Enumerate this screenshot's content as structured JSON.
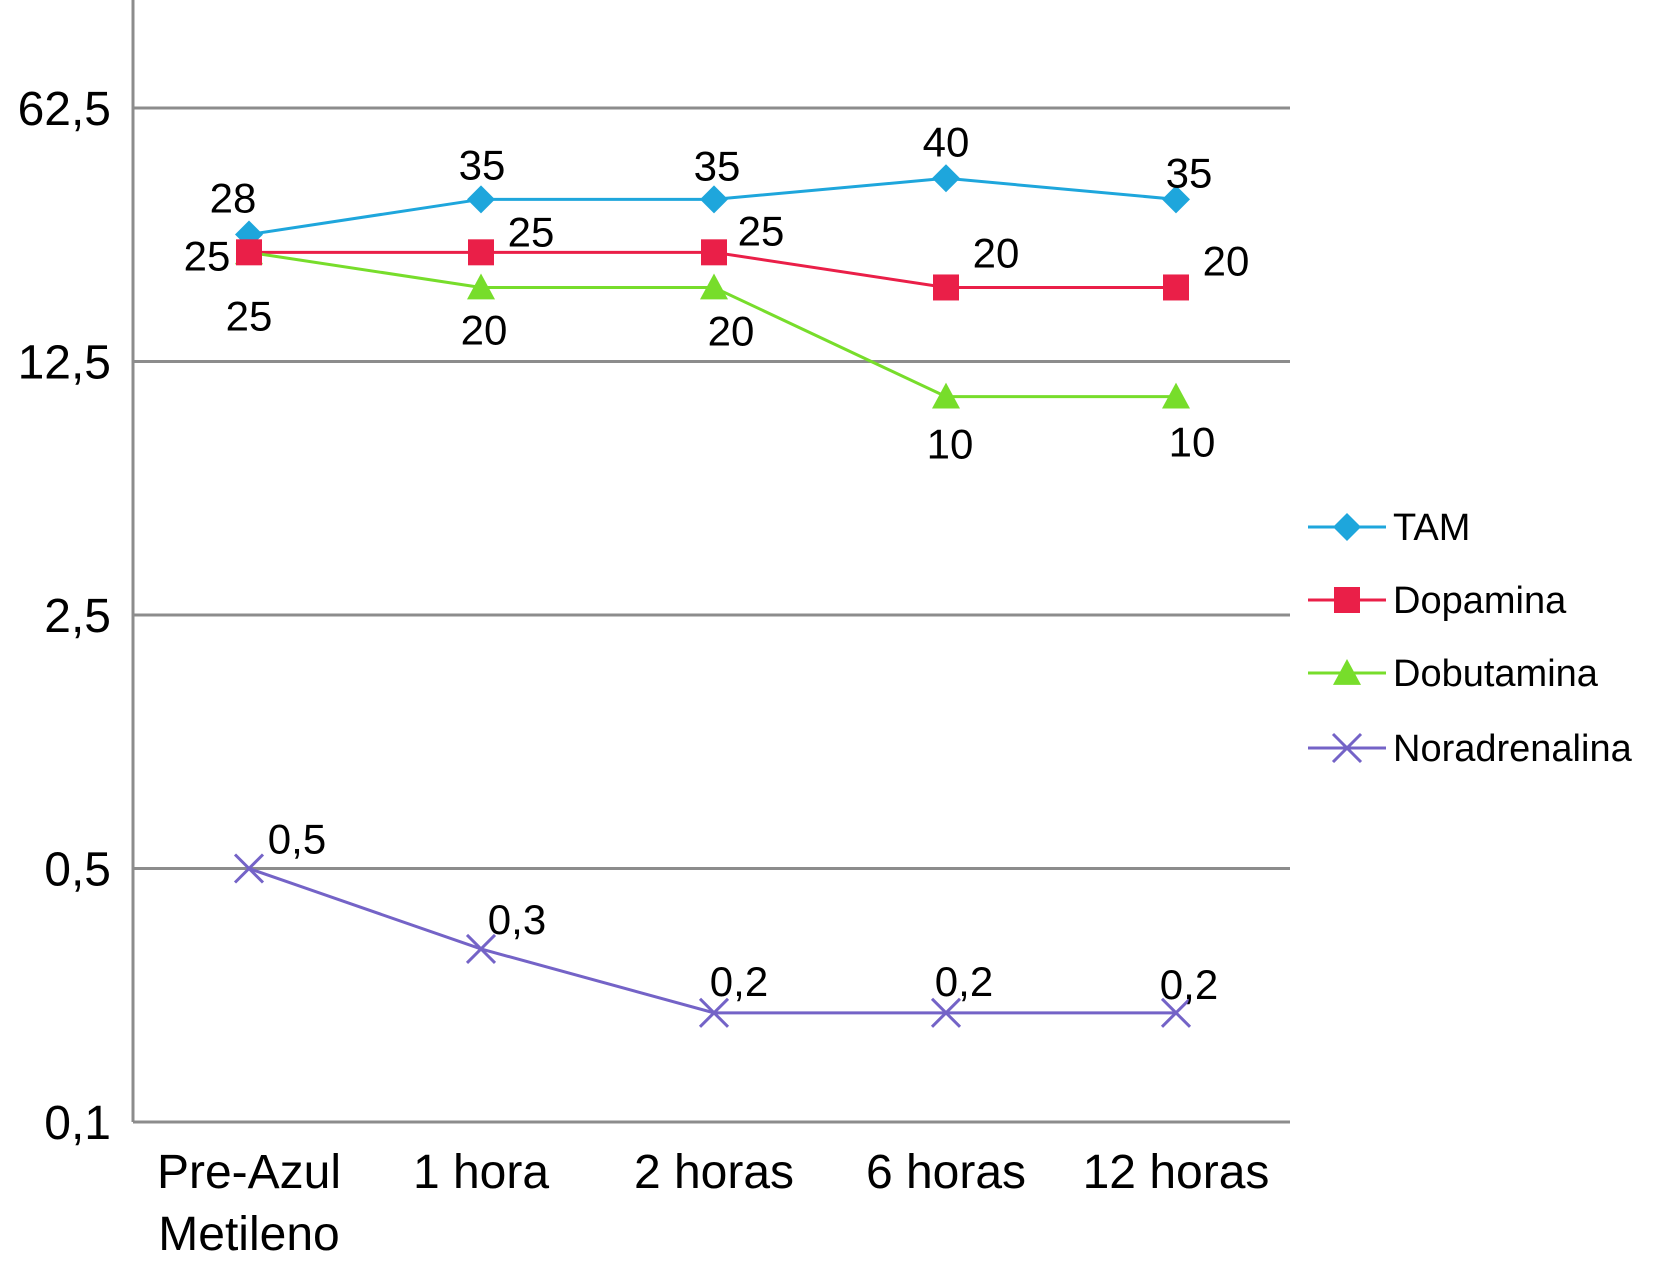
{
  "chart_data": {
    "type": "line",
    "y_scale": "log",
    "ylim": [
      0.1,
      62.5
    ],
    "yticks": [
      {
        "value": 0.1,
        "label": "0,1"
      },
      {
        "value": 0.5,
        "label": "0,5"
      },
      {
        "value": 2.5,
        "label": "2,5"
      },
      {
        "value": 12.5,
        "label": "12,5"
      },
      {
        "value": 62.5,
        "label": "62,5"
      }
    ],
    "categories": [
      [
        "Pre-Azul",
        "Metileno"
      ],
      [
        "1 hora"
      ],
      [
        "2 horas"
      ],
      [
        "6 horas"
      ],
      [
        "12 horas"
      ]
    ],
    "grid": true,
    "legend_position": "right",
    "series": [
      {
        "name": "TAM",
        "color": "#1ea6dc",
        "marker": "diamond",
        "values": [
          28,
          35,
          35,
          40,
          35
        ],
        "labels": [
          "28",
          "35",
          "35",
          "40",
          "35"
        ]
      },
      {
        "name": "Dopamina",
        "color": "#ea1f48",
        "marker": "square",
        "values": [
          25,
          25,
          25,
          20,
          20
        ],
        "labels": [
          "25",
          "25",
          "25",
          "20",
          "20"
        ]
      },
      {
        "name": "Dobutamina",
        "color": "#77dd2b",
        "marker": "triangle",
        "values": [
          25,
          20,
          20,
          10,
          10
        ],
        "labels": [
          "25",
          "20",
          "20",
          "10",
          "10"
        ]
      },
      {
        "name": "Noradrenalina",
        "color": "#7463c7",
        "marker": "x",
        "values": [
          0.5,
          0.3,
          0.2,
          0.2,
          0.2
        ],
        "labels": [
          "0,5",
          "0,3",
          "0,2",
          "0,2",
          "0,2"
        ]
      }
    ]
  }
}
